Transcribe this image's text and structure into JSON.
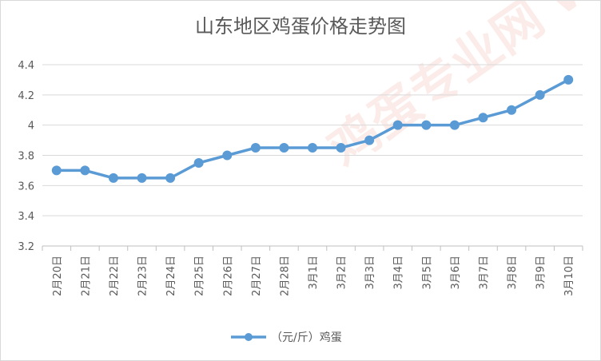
{
  "chart_data": {
    "type": "line",
    "title": "山东地区鸡蛋价格走势图",
    "xlabel": "",
    "ylabel": "",
    "categories": [
      "2月20日",
      "2月21日",
      "2月22日",
      "2月23日",
      "2月24日",
      "2月25日",
      "2月26日",
      "2月27日",
      "2月28日",
      "3月1日",
      "3月2日",
      "3月3日",
      "3月4日",
      "3月5日",
      "3月6日",
      "3月7日",
      "3月8日",
      "3月9日",
      "3月10日"
    ],
    "series": [
      {
        "name": "（元/斤）鸡蛋",
        "color": "#5b9bd5",
        "values": [
          3.7,
          3.7,
          3.65,
          3.65,
          3.65,
          3.75,
          3.8,
          3.85,
          3.85,
          3.85,
          3.85,
          3.9,
          4.0,
          4.0,
          4.0,
          4.05,
          4.1,
          4.2,
          4.3
        ]
      }
    ],
    "ylim": [
      3.2,
      4.4
    ],
    "yticks": [
      "3.2",
      "3.4",
      "3.6",
      "3.8",
      "4",
      "4.2",
      "4.4"
    ],
    "grid": true,
    "legend": "bottom",
    "watermark": "鸡蛋专业网 www.jdzyw.com 鸡蛋行业"
  }
}
